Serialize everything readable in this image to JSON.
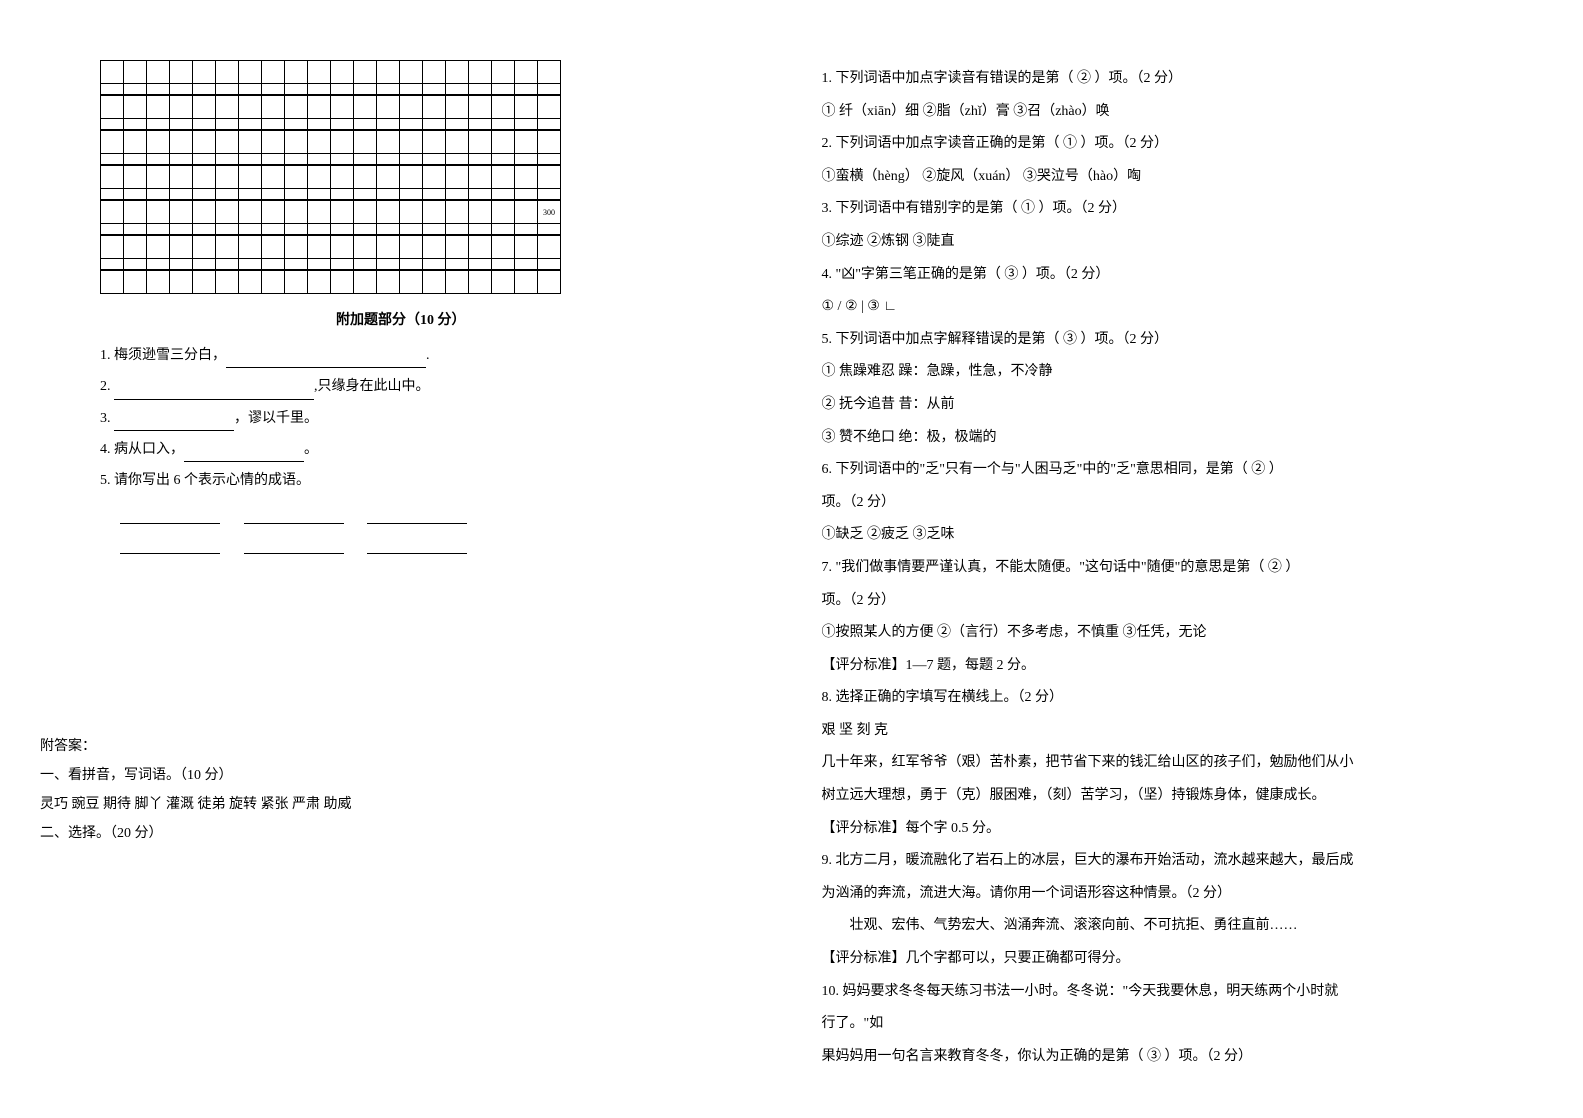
{
  "left": {
    "section_title": "附加题部分（10 分）",
    "fill_items": [
      {
        "num": "1.",
        "prefix": "梅须逊雪三分白，",
        "suffix": "."
      },
      {
        "num": "2.",
        "prefix": "",
        "suffix": ",只缘身在此山中。"
      },
      {
        "num": "3.",
        "prefix": "",
        "suffix": "，谬以千里。"
      },
      {
        "num": "4.",
        "prefix": "病从口入，",
        "suffix": "。"
      },
      {
        "num": "5.",
        "text": "请你写出 6 个表示心情的成语。"
      }
    ],
    "cell_300": "300",
    "answer": {
      "title": "附答案：",
      "line1": "一、看拼音，写词语。（10 分）",
      "line2": "灵巧  豌豆   期待  脚丫  灌溉   徒弟  旋转  紧张  严肃   助威",
      "line3": "二、选择。（20 分）"
    },
    "grid": {
      "cols": 20,
      "pattern": [
        "full",
        "half",
        "full",
        "half",
        "full",
        "half",
        "full",
        "half",
        "full300",
        "half",
        "full",
        "half",
        "full"
      ]
    }
  },
  "right": {
    "q1": "1. 下列词语中加点字读音有错误的是第（  ②  ）项。（2 分）",
    "q1_opts": "① 纤（xiān）细      ②脂（zhǐ）膏         ③召（zhào）唤",
    "q2": "2. 下列词语中加点字读音正确的是第（  ①  ）项。（2 分）",
    "q2_opts": "①蛮横（hèng）      ②旋风（xuán）       ③哭泣号（hào）啕",
    "q3": "3. 下列词语中有错别字的是第（  ①   ）项。（2 分）",
    "q3_opts": "①综迹               ②炼钢                ③陡直",
    "q4": "4. \"凶\"字第三笔正确的是第（  ③   ）项。（2 分）",
    "q4_opts": "① /                 ② |                  ③ ∟",
    "q5": "5.  下列词语中加点字解释错误的是第（  ③   ）项。（2 分）",
    "q5_o1": "①  焦躁难忍   躁：急躁，性急，不冷静",
    "q5_o2": "②  抚今追昔   昔：从前",
    "q5_o3": "③  赞不绝口   绝：极，极端的",
    "q6": "6. 下列词语中的\"乏\"只有一个与\"人困马乏\"中的\"乏\"意思相同，是第（  ②  ）",
    "q6b": "项。（2 分）",
    "q6_opts": "①缺乏               ②疲乏                ③乏味",
    "q7": "7. \"我们做事情要严谨认真，不能太随便。\"这句话中\"随便\"的意思是第（ ② ）",
    "q7b": "项。（2 分）",
    "q7_opts": "①按照某人的方便     ②（言行）不多考虑，不慎重   ③任凭，无论",
    "std1": "【评分标准】1—7 题，每题 2 分。",
    "q8": "8.  选择正确的字填写在横线上。（2 分）",
    "q8_chars": "艰    坚         刻    克",
    "q8_text1": "几十年来，红军爷爷（艰）苦朴素，把节省下来的钱汇给山区的孩子们，勉励他们从小",
    "q8_text2": "树立远大理想，勇于（克）服困难，（刻）苦学习，（坚）持锻炼身体，健康成长。",
    "std2": "【评分标准】每个字 0.5 分。",
    "q9_1": "9. 北方二月，暖流融化了岩石上的冰层，巨大的瀑布开始活动，流水越来越大，最后成",
    "q9_2": "为汹涌的奔流，流进大海。请你用一个词语形容这种情景。（2 分）",
    "q9_3": "壮观、宏伟、气势宏大、汹涌奔流、滚滚向前、不可抗拒、勇往直前……",
    "std3": "【评分标准】几个字都可以，只要正确都可得分。",
    "q10_1": "10. 妈妈要求冬冬每天练习书法一小时。冬冬说：\"今天我要休息，明天练两个小时就",
    "q10_2": "行了。\"如",
    "q10_3": "果妈妈用一句名言来教育冬冬，你认为正确的是第（  ③   ）项。（2 分）"
  }
}
